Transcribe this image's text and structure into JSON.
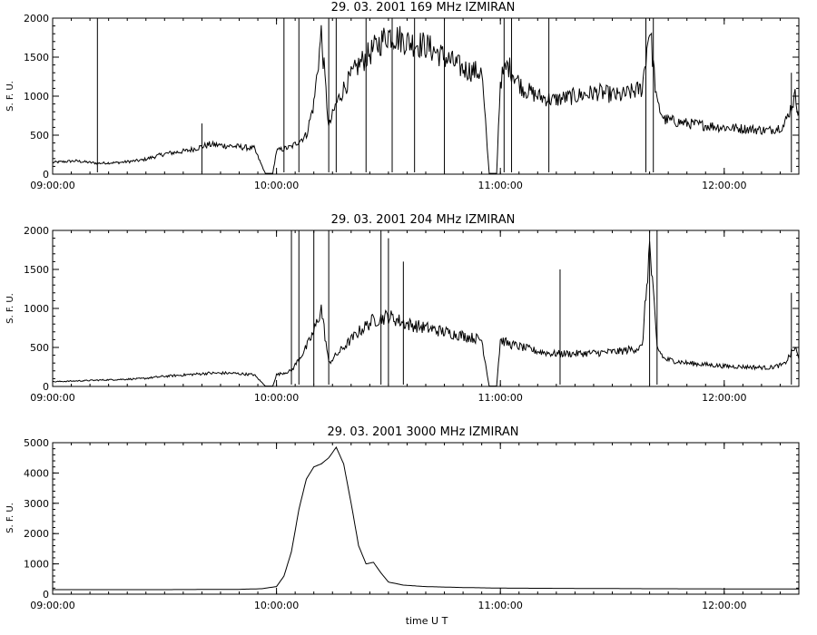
{
  "chart_data": [
    {
      "type": "line",
      "title": "29.  03.  2001    169 MHz    IZMIRAN",
      "ylabel": "S. F. U.",
      "xlabel": "",
      "xlim": [
        "09:00:00",
        "12:20:00"
      ],
      "ylim": [
        0,
        2000
      ],
      "x_ticks": [
        "09:00:00",
        "10:00:00",
        "11:00:00",
        "12:00:00"
      ],
      "y_ticks": [
        0,
        500,
        1000,
        1500,
        2000
      ],
      "grid": false,
      "series": [
        {
          "color": "#000000",
          "x": [
            "09:00:00",
            "09:06:00",
            "09:12:00",
            "09:18:00",
            "09:24:00",
            "09:30:00",
            "09:36:00",
            "09:42:00",
            "09:48:00",
            "09:54:00",
            "09:57:00",
            "09:59:00",
            "10:00:00",
            "10:04:00",
            "10:08:00",
            "10:10:00",
            "10:12:00",
            "10:14:00",
            "10:16:00",
            "10:18:00",
            "10:22:00",
            "10:26:00",
            "10:30:00",
            "10:35:00",
            "10:40:00",
            "10:45:00",
            "10:50:00",
            "10:55:00",
            "10:57:00",
            "10:58:00",
            "10:59:00",
            "11:00:00",
            "11:02:00",
            "11:06:00",
            "11:10:00",
            "11:14:00",
            "11:20:00",
            "11:26:00",
            "11:32:00",
            "11:38:00",
            "11:40:00",
            "11:42:00",
            "11:44:00",
            "11:50:00",
            "12:00:00",
            "12:06:00",
            "12:12:00",
            "12:16:00",
            "12:19:00",
            "12:20:00"
          ],
          "values": [
            150,
            170,
            140,
            150,
            180,
            260,
            300,
            380,
            360,
            330,
            10,
            10,
            300,
            350,
            500,
            900,
            1800,
            600,
            900,
            1100,
            1400,
            1600,
            1800,
            1700,
            1650,
            1500,
            1350,
            1300,
            10,
            10,
            10,
            1200,
            1400,
            1100,
            1000,
            950,
            1000,
            1050,
            1000,
            1100,
            1900,
            900,
            700,
            650,
            600,
            580,
            560,
            620,
            1000,
            800
          ]
        }
      ],
      "spikes": [
        {
          "x": "09:12:00",
          "y": 2000
        },
        {
          "x": "09:40:00",
          "y": 650
        },
        {
          "x": "10:02:00",
          "y": 2000
        },
        {
          "x": "10:06:00",
          "y": 2000
        },
        {
          "x": "10:14:00",
          "y": 2000
        },
        {
          "x": "10:16:00",
          "y": 2000
        },
        {
          "x": "10:24:00",
          "y": 2000
        },
        {
          "x": "10:31:00",
          "y": 2000
        },
        {
          "x": "10:37:00",
          "y": 2000
        },
        {
          "x": "10:45:00",
          "y": 2000
        },
        {
          "x": "11:01:00",
          "y": 2000
        },
        {
          "x": "11:03:00",
          "y": 2000
        },
        {
          "x": "11:13:00",
          "y": 2000
        },
        {
          "x": "11:39:00",
          "y": 2000
        },
        {
          "x": "11:41:00",
          "y": 2000
        },
        {
          "x": "12:18:00",
          "y": 1300
        }
      ]
    },
    {
      "type": "line",
      "title": "29.  03.  2001    204 MHz    IZMIRAN",
      "ylabel": "S. F. U.",
      "xlabel": "",
      "xlim": [
        "09:00:00",
        "12:20:00"
      ],
      "ylim": [
        0,
        2000
      ],
      "x_ticks": [
        "09:00:00",
        "10:00:00",
        "11:00:00",
        "12:00:00"
      ],
      "y_ticks": [
        0,
        500,
        1000,
        1500,
        2000
      ],
      "grid": false,
      "series": [
        {
          "color": "#000000",
          "x": [
            "09:00:00",
            "09:06:00",
            "09:12:00",
            "09:18:00",
            "09:24:00",
            "09:30:00",
            "09:36:00",
            "09:42:00",
            "09:48:00",
            "09:54:00",
            "09:57:00",
            "09:59:00",
            "10:00:00",
            "10:04:00",
            "10:08:00",
            "10:10:00",
            "10:12:00",
            "10:14:00",
            "10:16:00",
            "10:18:00",
            "10:22:00",
            "10:26:00",
            "10:30:00",
            "10:35:00",
            "10:40:00",
            "10:45:00",
            "10:50:00",
            "10:55:00",
            "10:57:00",
            "10:58:00",
            "10:59:00",
            "11:00:00",
            "11:02:00",
            "11:06:00",
            "11:10:00",
            "11:14:00",
            "11:20:00",
            "11:26:00",
            "11:32:00",
            "11:38:00",
            "11:40:00",
            "11:42:00",
            "11:44:00",
            "11:50:00",
            "12:00:00",
            "12:06:00",
            "12:12:00",
            "12:16:00",
            "12:19:00",
            "12:20:00"
          ],
          "values": [
            60,
            70,
            80,
            90,
            100,
            130,
            150,
            170,
            170,
            150,
            5,
            5,
            150,
            200,
            500,
            700,
            1000,
            300,
            400,
            500,
            700,
            850,
            900,
            800,
            750,
            700,
            650,
            600,
            5,
            5,
            5,
            600,
            550,
            500,
            450,
            420,
            420,
            430,
            450,
            500,
            1800,
            500,
            350,
            300,
            260,
            250,
            240,
            280,
            500,
            350
          ]
        }
      ],
      "spikes": [
        {
          "x": "10:04:00",
          "y": 2000
        },
        {
          "x": "10:06:00",
          "y": 2000
        },
        {
          "x": "10:10:00",
          "y": 2000
        },
        {
          "x": "10:14:00",
          "y": 2000
        },
        {
          "x": "10:28:00",
          "y": 2000
        },
        {
          "x": "10:30:00",
          "y": 1900
        },
        {
          "x": "10:34:00",
          "y": 1600
        },
        {
          "x": "11:16:00",
          "y": 1500
        },
        {
          "x": "11:40:00",
          "y": 2000
        },
        {
          "x": "11:42:00",
          "y": 2000
        },
        {
          "x": "12:18:00",
          "y": 1200
        }
      ]
    },
    {
      "type": "line",
      "title": "29.  03.  2001    3000 MHz    IZMIRAN",
      "ylabel": "S. F. U.",
      "xlabel": "time  U T",
      "xlim": [
        "09:00:00",
        "12:20:00"
      ],
      "ylim": [
        0,
        5000
      ],
      "x_ticks": [
        "09:00:00",
        "10:00:00",
        "11:00:00",
        "12:00:00"
      ],
      "y_ticks": [
        0,
        1000,
        2000,
        3000,
        4000,
        5000
      ],
      "grid": false,
      "series": [
        {
          "color": "#000000",
          "x": [
            "09:00:00",
            "09:30:00",
            "09:50:00",
            "09:56:00",
            "10:00:00",
            "10:02:00",
            "10:04:00",
            "10:06:00",
            "10:08:00",
            "10:10:00",
            "10:12:00",
            "10:14:00",
            "10:16:00",
            "10:18:00",
            "10:20:00",
            "10:22:00",
            "10:24:00",
            "10:26:00",
            "10:28:00",
            "10:30:00",
            "10:34:00",
            "10:40:00",
            "10:50:00",
            "11:00:00",
            "11:20:00",
            "11:40:00",
            "12:00:00",
            "12:20:00"
          ],
          "values": [
            150,
            150,
            160,
            180,
            250,
            600,
            1400,
            2800,
            3800,
            4200,
            4300,
            4500,
            4850,
            4300,
            3000,
            1600,
            1000,
            1050,
            700,
            400,
            300,
            250,
            220,
            200,
            190,
            180,
            175,
            170
          ]
        }
      ],
      "spikes": []
    }
  ]
}
